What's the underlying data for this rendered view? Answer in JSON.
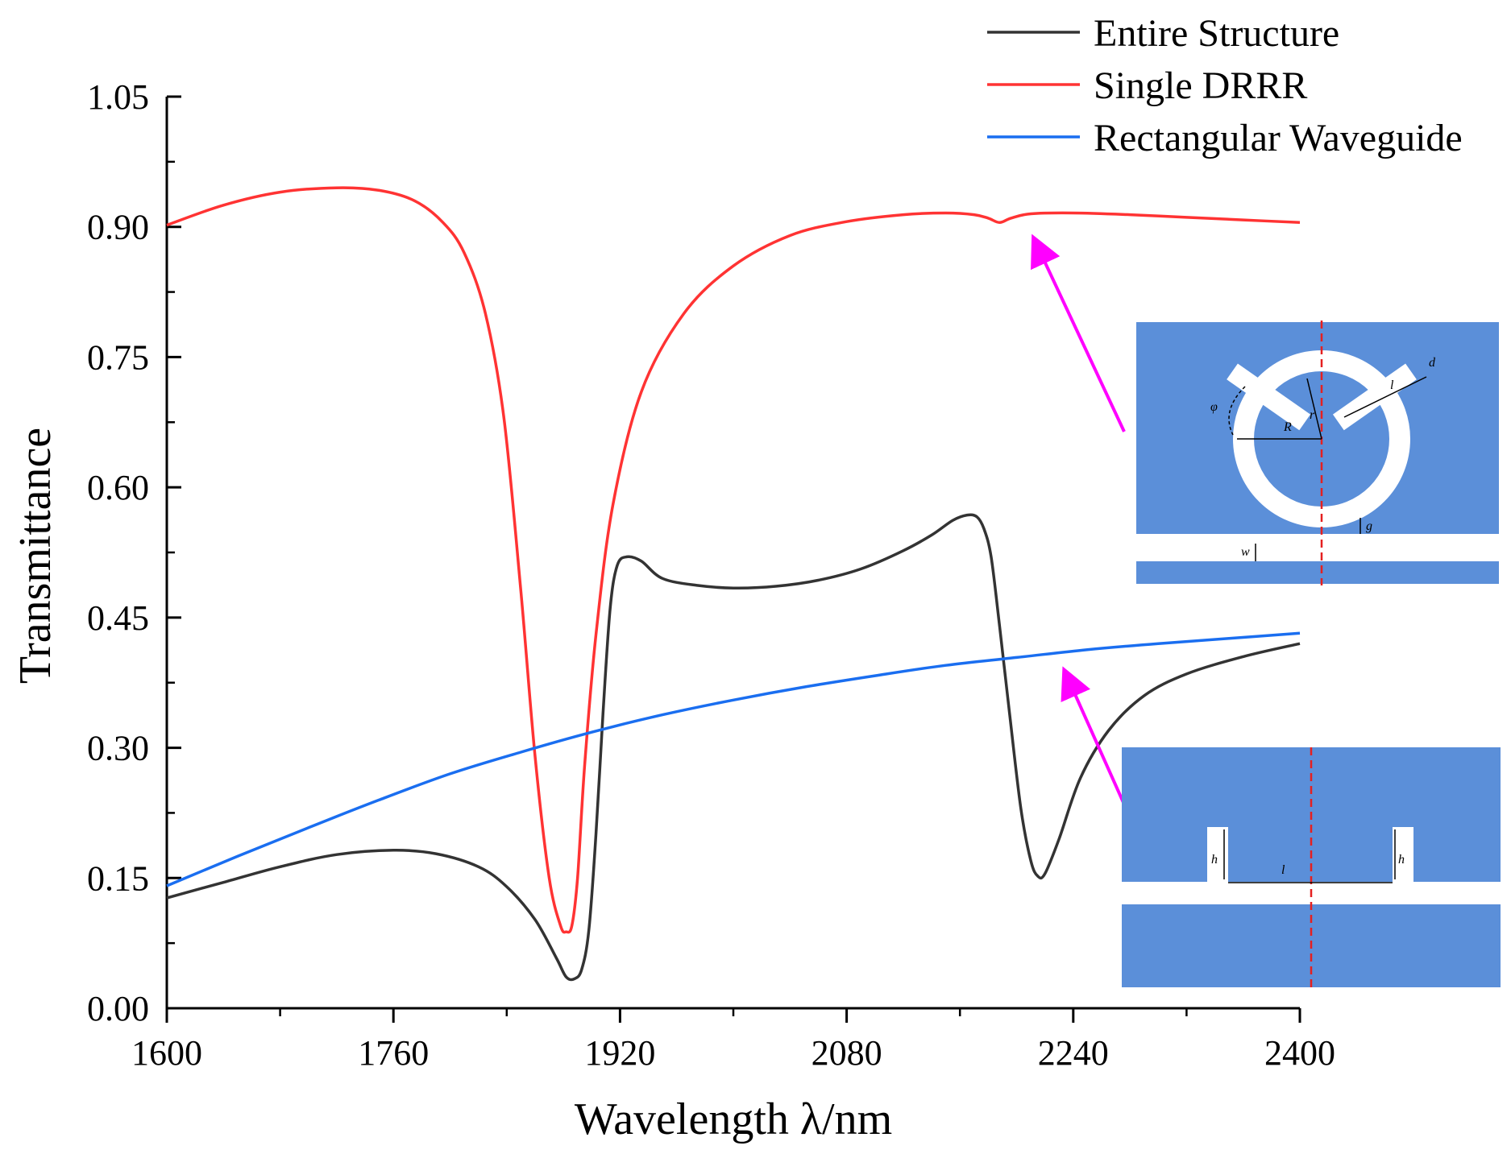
{
  "colors": {
    "entire": "#333333",
    "single": "#ff3333",
    "rect": "#1a6ef0",
    "arrow": "#ff00ff",
    "inset_fill": "#5b8fd9",
    "inset_gap": "#ffffff",
    "center_line": "#e52020"
  },
  "chart_data": {
    "type": "line",
    "xlabel": "Wavelength λ/nm",
    "ylabel": "Transmittance",
    "xlim": [
      1600,
      2400
    ],
    "ylim": [
      0,
      1.05
    ],
    "x_ticks": [
      "1600",
      "1760",
      "1920",
      "2080",
      "2240",
      "2400"
    ],
    "y_ticks": [
      "0.00",
      "0.15",
      "0.30",
      "0.45",
      "0.60",
      "0.75",
      "0.90",
      "1.05"
    ],
    "legend_position": "top-right",
    "series": [
      {
        "name": "Entire Structure",
        "color_key": "entire",
        "points": [
          [
            1600,
            0.127
          ],
          [
            1640,
            0.145
          ],
          [
            1680,
            0.163
          ],
          [
            1720,
            0.177
          ],
          [
            1760,
            0.182
          ],
          [
            1790,
            0.178
          ],
          [
            1820,
            0.163
          ],
          [
            1840,
            0.14
          ],
          [
            1860,
            0.102
          ],
          [
            1875,
            0.058
          ],
          [
            1882,
            0.036
          ],
          [
            1888,
            0.034
          ],
          [
            1893,
            0.045
          ],
          [
            1898,
            0.09
          ],
          [
            1903,
            0.2
          ],
          [
            1908,
            0.34
          ],
          [
            1913,
            0.46
          ],
          [
            1918,
            0.51
          ],
          [
            1925,
            0.52
          ],
          [
            1935,
            0.515
          ],
          [
            1950,
            0.495
          ],
          [
            1975,
            0.487
          ],
          [
            2000,
            0.484
          ],
          [
            2030,
            0.486
          ],
          [
            2060,
            0.493
          ],
          [
            2090,
            0.506
          ],
          [
            2120,
            0.527
          ],
          [
            2140,
            0.545
          ],
          [
            2155,
            0.562
          ],
          [
            2165,
            0.568
          ],
          [
            2172,
            0.566
          ],
          [
            2177,
            0.552
          ],
          [
            2182,
            0.52
          ],
          [
            2188,
            0.44
          ],
          [
            2195,
            0.34
          ],
          [
            2203,
            0.23
          ],
          [
            2210,
            0.17
          ],
          [
            2215,
            0.152
          ],
          [
            2220,
            0.155
          ],
          [
            2230,
            0.195
          ],
          [
            2245,
            0.265
          ],
          [
            2265,
            0.32
          ],
          [
            2290,
            0.36
          ],
          [
            2320,
            0.385
          ],
          [
            2360,
            0.405
          ],
          [
            2400,
            0.42
          ]
        ]
      },
      {
        "name": "Single DRRR",
        "color_key": "single",
        "points": [
          [
            1600,
            0.902
          ],
          [
            1640,
            0.925
          ],
          [
            1680,
            0.94
          ],
          [
            1720,
            0.945
          ],
          [
            1750,
            0.942
          ],
          [
            1775,
            0.93
          ],
          [
            1795,
            0.905
          ],
          [
            1810,
            0.87
          ],
          [
            1825,
            0.8
          ],
          [
            1838,
            0.68
          ],
          [
            1850,
            0.48
          ],
          [
            1860,
            0.29
          ],
          [
            1870,
            0.15
          ],
          [
            1878,
            0.095
          ],
          [
            1882,
            0.088
          ],
          [
            1886,
            0.095
          ],
          [
            1890,
            0.15
          ],
          [
            1895,
            0.28
          ],
          [
            1903,
            0.43
          ],
          [
            1915,
            0.58
          ],
          [
            1935,
            0.71
          ],
          [
            1965,
            0.8
          ],
          [
            2000,
            0.855
          ],
          [
            2040,
            0.89
          ],
          [
            2080,
            0.906
          ],
          [
            2120,
            0.914
          ],
          [
            2150,
            0.916
          ],
          [
            2170,
            0.914
          ],
          [
            2180,
            0.91
          ],
          [
            2188,
            0.905
          ],
          [
            2196,
            0.91
          ],
          [
            2210,
            0.915
          ],
          [
            2240,
            0.916
          ],
          [
            2280,
            0.914
          ],
          [
            2320,
            0.911
          ],
          [
            2360,
            0.908
          ],
          [
            2400,
            0.905
          ]
        ]
      },
      {
        "name": "Rectangular Waveguide",
        "color_key": "rect",
        "points": [
          [
            1600,
            0.141
          ],
          [
            1650,
            0.175
          ],
          [
            1700,
            0.208
          ],
          [
            1750,
            0.24
          ],
          [
            1800,
            0.27
          ],
          [
            1850,
            0.295
          ],
          [
            1900,
            0.318
          ],
          [
            1950,
            0.338
          ],
          [
            2000,
            0.355
          ],
          [
            2050,
            0.37
          ],
          [
            2100,
            0.383
          ],
          [
            2150,
            0.395
          ],
          [
            2200,
            0.404
          ],
          [
            2250,
            0.413
          ],
          [
            2300,
            0.42
          ],
          [
            2350,
            0.426
          ],
          [
            2400,
            0.432
          ]
        ]
      }
    ]
  },
  "insets": {
    "drrr_labels": {
      "phi": "φ",
      "r": "r",
      "R": "R",
      "l": "l",
      "d": "d",
      "g": "g",
      "w": "w"
    },
    "rect_labels": {
      "h": "h",
      "l": "l"
    }
  }
}
